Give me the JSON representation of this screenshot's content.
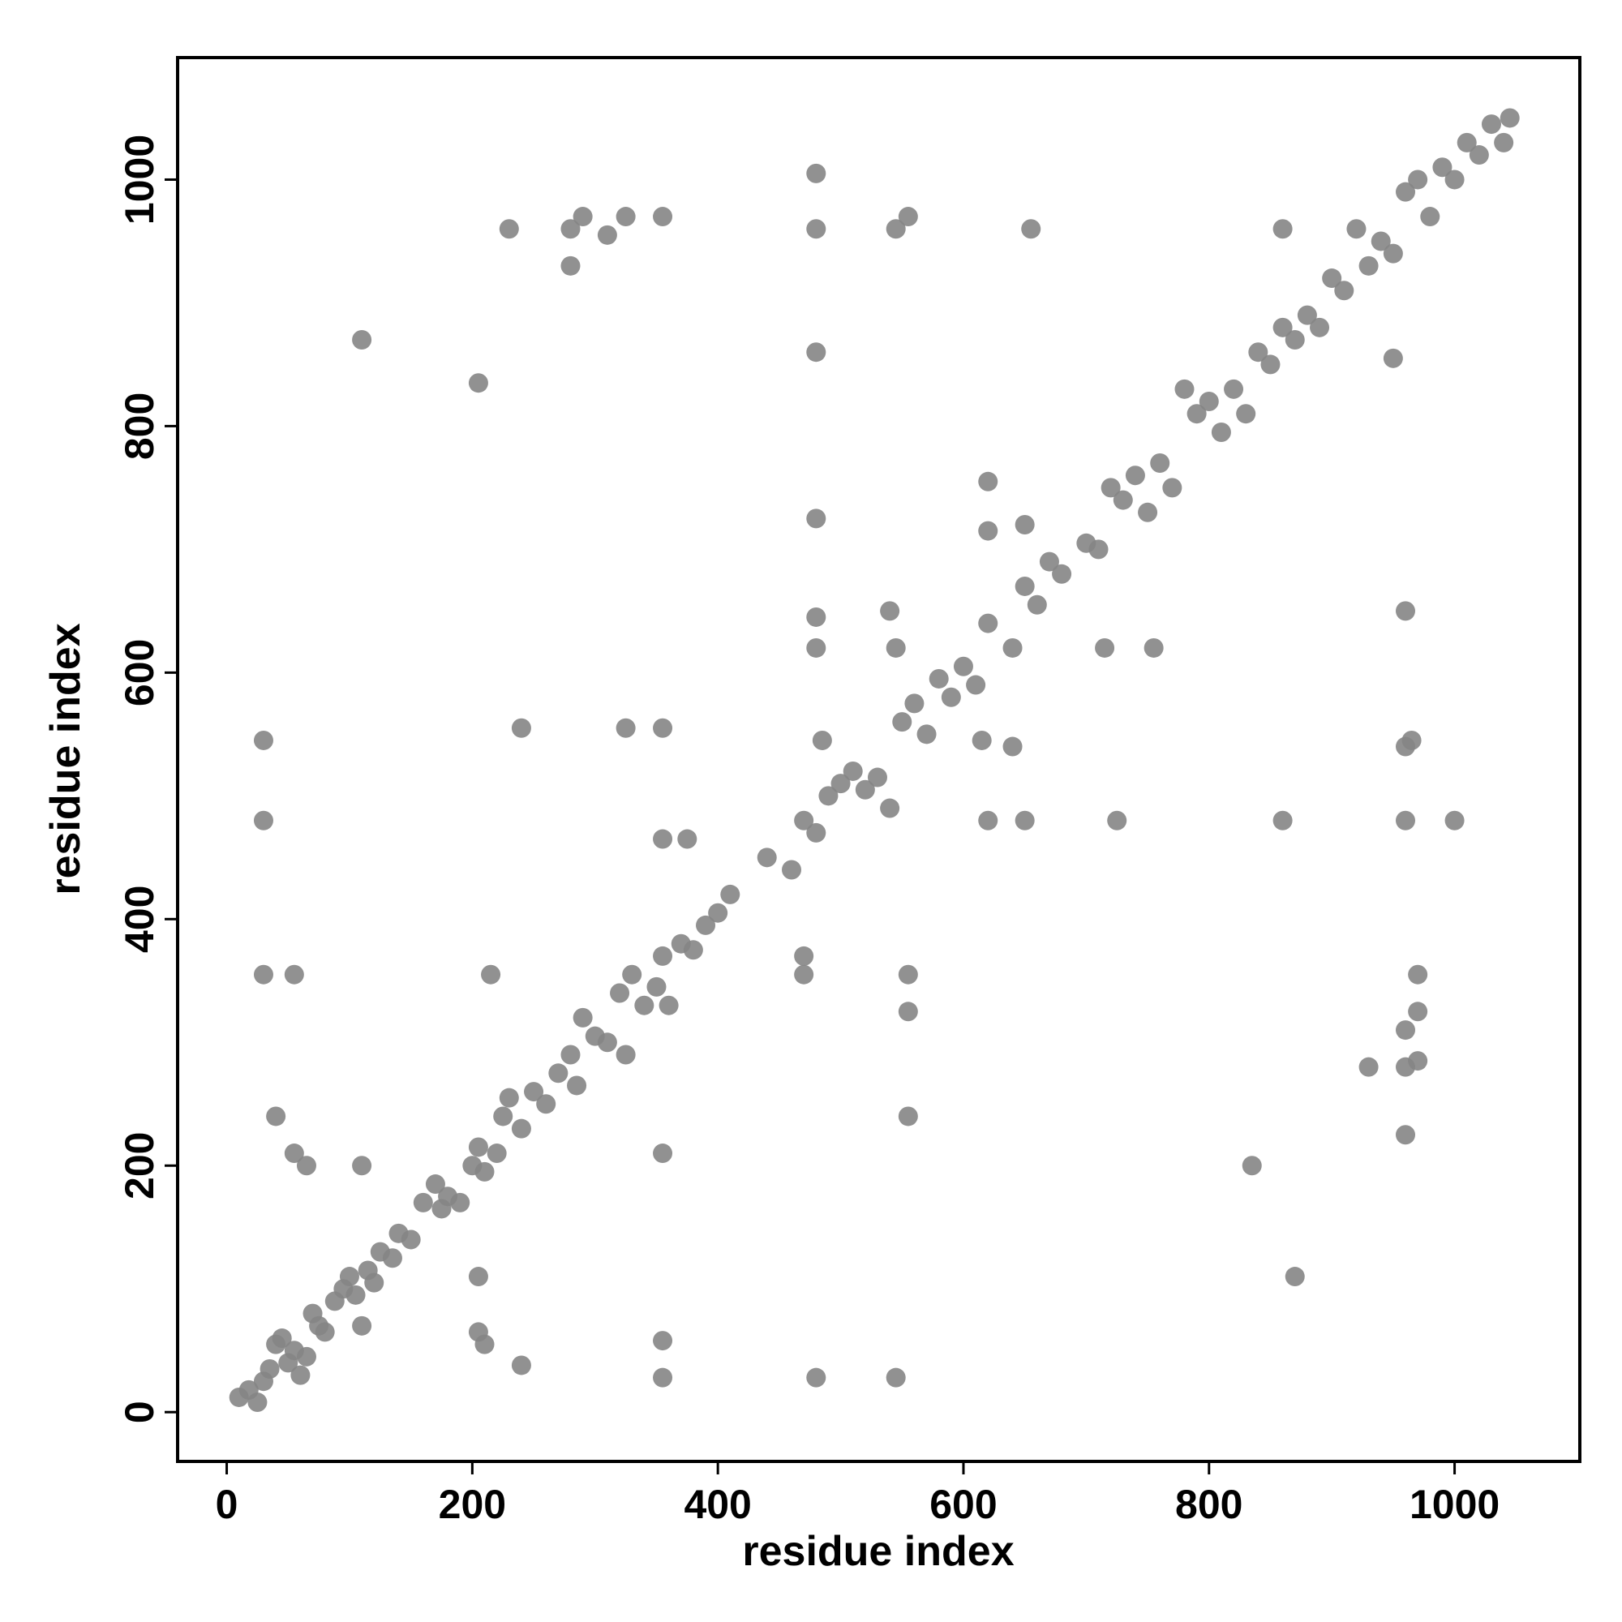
{
  "chart_data": {
    "type": "scatter",
    "xlabel": "residue index",
    "ylabel": "residue index",
    "color": "#858585",
    "xlim": [
      -40,
      1102
    ],
    "ylim": [
      -40,
      1099
    ],
    "xticks": [
      0,
      200,
      400,
      600,
      800,
      1000
    ],
    "yticks": [
      0,
      200,
      400,
      600,
      800,
      1000
    ],
    "x": [
      10,
      18,
      25,
      30,
      35,
      40,
      45,
      50,
      55,
      60,
      65,
      70,
      75,
      80,
      88,
      95,
      100,
      105,
      110,
      115,
      120,
      125,
      135,
      140,
      150,
      160,
      170,
      175,
      180,
      190,
      200,
      205,
      210,
      220,
      225,
      230,
      240,
      250,
      260,
      270,
      280,
      285,
      290,
      300,
      310,
      320,
      325,
      330,
      340,
      350,
      355,
      360,
      370,
      380,
      390,
      400,
      410,
      440,
      460,
      470,
      480,
      490,
      500,
      510,
      520,
      530,
      540,
      550,
      560,
      570,
      580,
      590,
      600,
      610,
      620,
      640,
      650,
      660,
      670,
      680,
      700,
      710,
      720,
      730,
      740,
      750,
      760,
      770,
      780,
      790,
      800,
      810,
      820,
      830,
      840,
      850,
      860,
      870,
      880,
      890,
      900,
      910,
      920,
      930,
      940,
      950,
      960,
      970,
      980,
      990,
      1000,
      1010,
      1020,
      1030,
      1040,
      1045,
      30,
      30,
      30,
      55,
      40,
      55,
      65,
      110,
      110,
      205,
      230,
      280,
      280,
      290,
      310,
      325,
      355,
      240,
      325,
      355,
      355,
      375,
      215,
      205,
      205,
      210,
      240,
      355,
      355,
      355,
      480,
      545,
      480,
      480,
      480,
      480,
      480,
      480,
      545,
      555,
      655,
      470,
      470,
      555,
      555,
      555,
      540,
      545,
      620,
      620,
      650,
      620,
      650,
      725,
      860,
      715,
      755,
      860,
      950,
      960,
      960,
      965,
      960,
      1000,
      960,
      970,
      970,
      930,
      960,
      970,
      960,
      835,
      870,
      640,
      615,
      485
    ],
    "values": [
      12,
      18,
      8,
      25,
      35,
      55,
      60,
      40,
      50,
      30,
      45,
      80,
      70,
      65,
      90,
      100,
      110,
      95,
      70,
      115,
      105,
      130,
      125,
      145,
      140,
      170,
      185,
      165,
      175,
      170,
      200,
      215,
      195,
      210,
      240,
      255,
      230,
      260,
      250,
      275,
      290,
      265,
      320,
      305,
      300,
      340,
      290,
      355,
      330,
      345,
      370,
      330,
      380,
      375,
      395,
      405,
      420,
      450,
      440,
      480,
      470,
      500,
      510,
      520,
      505,
      515,
      490,
      560,
      575,
      550,
      595,
      580,
      605,
      590,
      640,
      620,
      670,
      655,
      690,
      680,
      705,
      700,
      750,
      740,
      760,
      730,
      770,
      750,
      830,
      810,
      820,
      795,
      830,
      810,
      860,
      850,
      880,
      870,
      890,
      880,
      920,
      910,
      960,
      930,
      950,
      940,
      990,
      1000,
      970,
      1010,
      1000,
      1030,
      1020,
      1045,
      1030,
      1050,
      545,
      480,
      355,
      355,
      240,
      210,
      200,
      200,
      870,
      835,
      960,
      960,
      930,
      970,
      955,
      970,
      970,
      555,
      555,
      555,
      465,
      465,
      355,
      110,
      65,
      55,
      38,
      210,
      58,
      28,
      28,
      28,
      1005,
      960,
      860,
      725,
      645,
      620,
      960,
      970,
      960,
      370,
      355,
      355,
      325,
      240,
      650,
      620,
      755,
      715,
      720,
      480,
      480,
      480,
      480,
      620,
      620,
      960,
      855,
      650,
      540,
      545,
      480,
      480,
      310,
      355,
      325,
      280,
      280,
      285,
      225,
      200,
      110,
      540,
      545,
      545
    ]
  }
}
